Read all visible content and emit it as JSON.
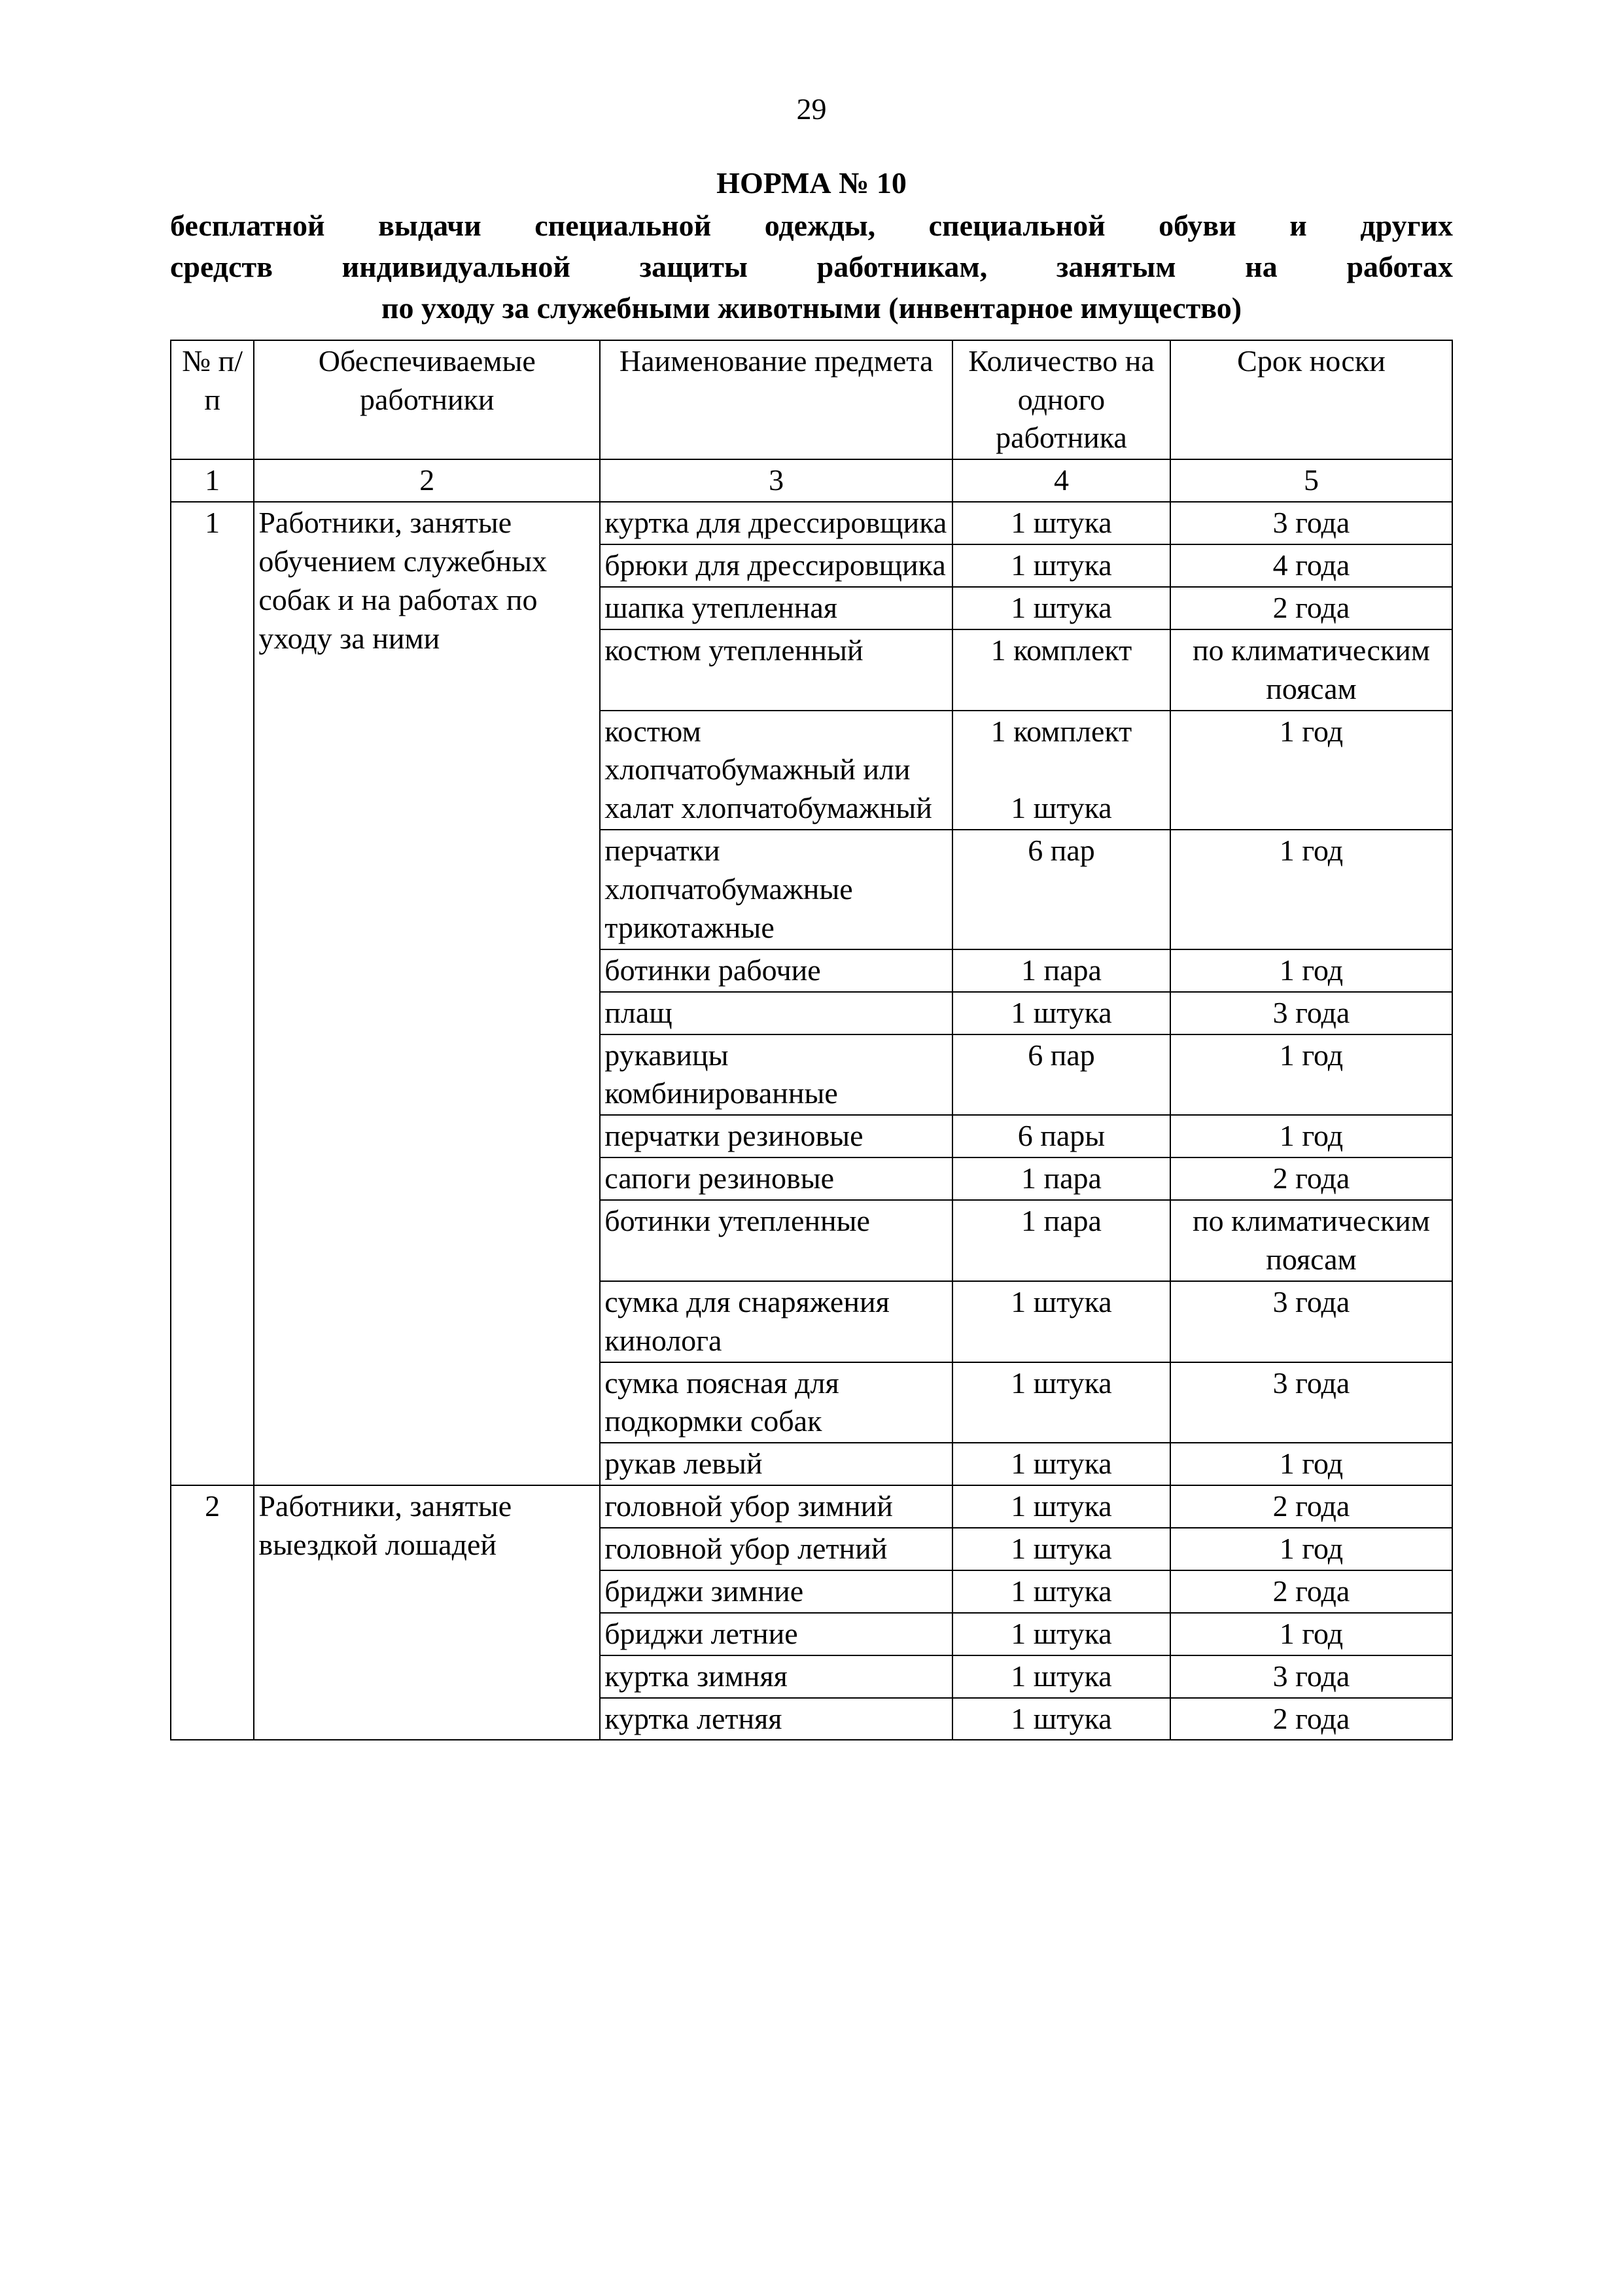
{
  "page_number": "29",
  "title": "НОРМА № 10",
  "subtitle_line1": "бесплатной выдачи специальной одежды,  специальной   обуви   и   других",
  "subtitle_line2": "средств   индивидуальной   защиты   работникам,   занятым   на   работах",
  "subtitle_line3": "по уходу за служебными животными (инвентарное имущество)",
  "headers": {
    "c1": "№ п/п",
    "c2": "Обеспечиваемые работники",
    "c3": "Наименование предмета",
    "c4": "Количество на одного работника",
    "c5": "Срок носки"
  },
  "numrow": {
    "c1": "1",
    "c2": "2",
    "c3": "3",
    "c4": "4",
    "c5": "5"
  },
  "section1": {
    "num": "1",
    "workers": "Работники, занятые обучением служебных собак и на работах по уходу за ними",
    "rows": [
      {
        "item": "куртка для дрессировщика",
        "qty": "1 штука",
        "term": "3 года"
      },
      {
        "item": "брюки для дрессировщика",
        "qty": "1 штука",
        "term": "4 года"
      },
      {
        "item": "шапка утепленная",
        "qty": "1 штука",
        "term": "2 года"
      },
      {
        "item": "костюм утепленный",
        "qty": "1 комплект",
        "term": "по климатическим поясам"
      },
      {
        "item": "костюм хлопчатобумажный или халат хлопчатобумажный",
        "qty": "1 комплект",
        "qty2": "1 штука",
        "term": "1 год"
      },
      {
        "item": "перчатки хлопчатобумажные трикотажные",
        "qty": "6 пар",
        "term": "1 год"
      },
      {
        "item": "ботинки рабочие",
        "qty": "1 пара",
        "term": "1 год"
      },
      {
        "item": "плащ",
        "qty": "1 штука",
        "term": "3 года"
      },
      {
        "item": "рукавицы комбинированные",
        "qty": "6 пар",
        "term": "1 год"
      },
      {
        "item": "перчатки резиновые",
        "qty": "6 пары",
        "term": "1 год"
      },
      {
        "item": "сапоги резиновые",
        "qty": "1 пара",
        "term": "2 года"
      },
      {
        "item": "ботинки утепленные",
        "qty": "1 пара",
        "term": "по климатическим поясам"
      },
      {
        "item": "сумка для снаряжения кинолога",
        "qty": "1 штука",
        "term": "3 года"
      },
      {
        "item": "сумка поясная для подкормки собак",
        "qty": "1 штука",
        "term": "3 года"
      },
      {
        "item": "рукав левый",
        "qty": "1 штука",
        "term": "1 год"
      }
    ]
  },
  "section2": {
    "num": "2",
    "workers": "Работники, занятые выездкой лошадей",
    "rows": [
      {
        "item": "головной убор зимний",
        "qty": "1 штука",
        "term": "2 года"
      },
      {
        "item": "головной убор летний",
        "qty": "1 штука",
        "term": "1 год"
      },
      {
        "item": "бриджи зимние",
        "qty": "1 штука",
        "term": "2 года"
      },
      {
        "item": "бриджи летние",
        "qty": "1 штука",
        "term": "1 год"
      },
      {
        "item": "куртка зимняя",
        "qty": "1 штука",
        "term": "3 года"
      },
      {
        "item": "куртка летняя",
        "qty": "1 штука",
        "term": "2 года"
      }
    ]
  }
}
